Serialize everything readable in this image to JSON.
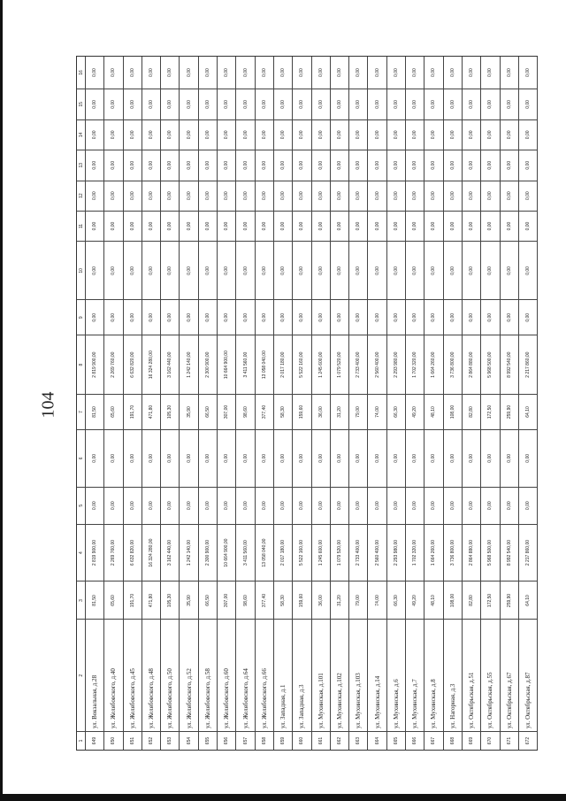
{
  "page_number": "104",
  "table": {
    "column_headers": [
      "1",
      "2",
      "3",
      "4",
      "5",
      "6",
      "7",
      "8",
      "9",
      "10",
      "11",
      "12",
      "13",
      "14",
      "15",
      "16"
    ],
    "rows": [
      {
        "no": "649",
        "address": "ул. Вокзальная, д.28",
        "c3": "81,50",
        "c4": "2 819 900,00",
        "c7": "81,50",
        "c8": "2 819 900,00"
      },
      {
        "no": "650",
        "address": "ул. Желябовского, д.40",
        "c3": "65,60",
        "c4": "2 269 760,00",
        "c7": "65,60",
        "c8": "2 269 760,00"
      },
      {
        "no": "651",
        "address": "ул. Желябовского, д.45",
        "c3": "191,70",
        "c4": "6 632 820,00",
        "c7": "191,70",
        "c8": "6 632 820,00"
      },
      {
        "no": "652",
        "address": "ул. Желябовского, д.48",
        "c3": "471,80",
        "c4": "16 324 280,00",
        "c7": "471,80",
        "c8": "16 324 280,00"
      },
      {
        "no": "653",
        "address": "ул. Желябовского, д.50",
        "c3": "105,30",
        "c4": "3 162 440,00",
        "c7": "105,30",
        "c8": "3 162 440,00"
      },
      {
        "no": "654",
        "address": "ул. Желябовского, д.52",
        "c3": "35,90",
        "c4": "1 242 140,00",
        "c7": "35,90",
        "c8": "1 242 140,00"
      },
      {
        "no": "655",
        "address": "ул. Желябовского, д.58",
        "c3": "66,50",
        "c4": "2 300 900,00",
        "c7": "66,50",
        "c8": "2 300 900,00"
      },
      {
        "no": "656",
        "address": "ул. Желябовского, д.60",
        "c3": "307,00",
        "c4": "10 664 900,00",
        "c7": "307,00",
        "c8": "10 664 900,00"
      },
      {
        "no": "657",
        "address": "ул. Желябовского, д.64",
        "c3": "98,60",
        "c4": "3 411 560,00",
        "c7": "98,60",
        "c8": "3 411 560,00"
      },
      {
        "no": "658",
        "address": "ул. Желябовского, д.66",
        "c3": "377,40",
        "c4": "13 058 040,00",
        "c7": "377,40",
        "c8": "13 058 040,00"
      },
      {
        "no": "659",
        "address": "ул. Западная, д.1",
        "c3": "58,30",
        "c4": "2 017 180,00",
        "c7": "58,30",
        "c8": "2 017 180,00"
      },
      {
        "no": "660",
        "address": "ул. Западная, д.3",
        "c3": "159,60",
        "c4": "5 522 160,00",
        "c7": "159,60",
        "c8": "5 522 160,00"
      },
      {
        "no": "661",
        "address": "ул. Мухинская, д.101",
        "c3": "36,00",
        "c4": "1 245 600,00",
        "c7": "36,00",
        "c8": "1 245 600,00"
      },
      {
        "no": "662",
        "address": "ул. Мухинская, д.102",
        "c3": "31,20",
        "c4": "1 079 520,00",
        "c7": "31,20",
        "c8": "1 079 520,00"
      },
      {
        "no": "663",
        "address": "ул. Мухинская, д.103",
        "c3": "79,00",
        "c4": "2 733 400,00",
        "c7": "79,00",
        "c8": "2 733 400,00"
      },
      {
        "no": "664",
        "address": "ул. Мухинская, д.14",
        "c3": "74,00",
        "c4": "2 560 400,00",
        "c7": "74,00",
        "c8": "2 560 400,00"
      },
      {
        "no": "665",
        "address": "ул. Мухинская, д.6",
        "c3": "66,30",
        "c4": "2 293 980,00",
        "c7": "66,30",
        "c8": "2 293 980,00"
      },
      {
        "no": "666",
        "address": "ул. Мухинская, д.7",
        "c3": "49,20",
        "c4": "1 702 320,00",
        "c7": "49,20",
        "c8": "1 702 320,00"
      },
      {
        "no": "667",
        "address": "ул. Мухинская, д.8",
        "c3": "48,10",
        "c4": "1 664 260,00",
        "c7": "48,10",
        "c8": "1 664 260,00"
      },
      {
        "no": "668",
        "address": "ул. Нагорная, д.3",
        "c3": "108,00",
        "c4": "3 736 800,00",
        "c7": "108,00",
        "c8": "3 736 800,00"
      },
      {
        "no": "669",
        "address": "ул. Октябрьская, д.51",
        "c3": "82,80",
        "c4": "2 864 880,00",
        "c7": "82,80",
        "c8": "2 864 880,00"
      },
      {
        "no": "670",
        "address": "ул. Октябрьская, д.55",
        "c3": "172,50",
        "c4": "5 968 500,00",
        "c7": "172,50",
        "c8": "5 968 500,00"
      },
      {
        "no": "671",
        "address": "ул. Октябрьская, д.67",
        "c3": "259,90",
        "c4": "8 992 540,00",
        "c7": "259,90",
        "c8": "8 992 540,00"
      },
      {
        "no": "672",
        "address": "ул. Октябрьская, д.87",
        "c3": "64,10",
        "c4": "2 217 860,00",
        "c7": "64,10",
        "c8": "2 217 860,00"
      }
    ],
    "zero_value": "0,00"
  }
}
